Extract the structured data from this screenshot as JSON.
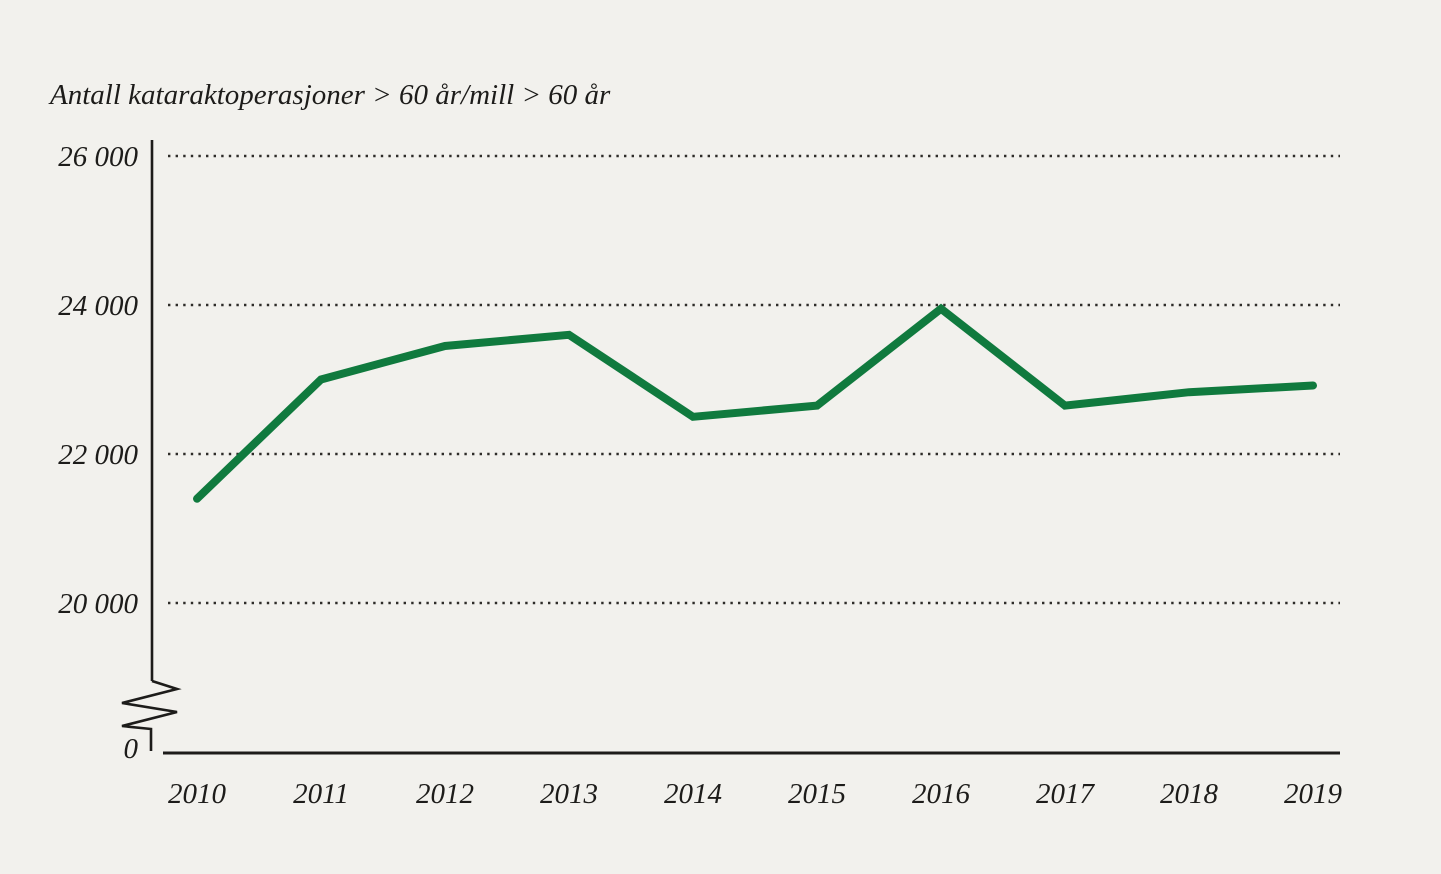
{
  "page": {
    "background_color": "#f2f1ed",
    "text_color": "#1d1c1a"
  },
  "chart_data": {
    "type": "line",
    "title": "Antall kataraktoperasjoner > 60 år/mill > 60 år",
    "xlabel": "",
    "ylabel": "Antall kataraktoperasjoner > 60 år/mill > 60 år",
    "categories": [
      "2010",
      "2011",
      "2012",
      "2013",
      "2014",
      "2015",
      "2016",
      "2017",
      "2018",
      "2019"
    ],
    "series": [
      {
        "name": "Antall kataraktoperasjoner > 60 år/mill > 60 år",
        "values": [
          21400,
          23000,
          23450,
          23600,
          22500,
          22650,
          23950,
          22650,
          22830,
          22920
        ]
      }
    ],
    "y_ticks": [
      {
        "value": 26000,
        "label": "26 000"
      },
      {
        "value": 24000,
        "label": "24 000"
      },
      {
        "value": 22000,
        "label": "22 000"
      },
      {
        "value": 20000,
        "label": "20 000"
      },
      {
        "value": 0,
        "label": "0"
      }
    ],
    "ylim": [
      0,
      26000
    ],
    "axis_break": true,
    "grid": "dotted-horizontal",
    "legend": "none",
    "line_color": "#107a3e",
    "axis_color": "#1d1c1a",
    "grid_dot_color": "#2e2c29"
  }
}
